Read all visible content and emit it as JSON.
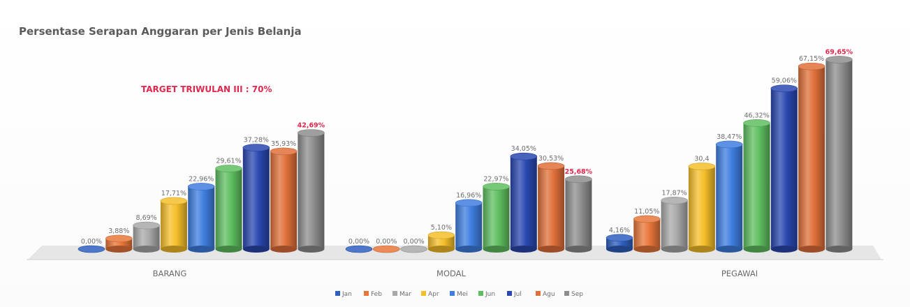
{
  "chart_data": {
    "type": "bar",
    "title": "Persentase Serapan Anggaran per Jenis Belanja",
    "annotation": "TARGET TRIWULAN III : 70%",
    "categories": [
      "BARANG",
      "MODAL",
      "PEGAWAI"
    ],
    "series": [
      {
        "name": "Jan",
        "values": [
          0.0,
          0.0,
          4.16
        ],
        "labels": [
          "0,00%",
          "0,00%",
          "4,16%"
        ],
        "color": "#2f5fbf"
      },
      {
        "name": "Feb",
        "values": [
          3.88,
          0.0,
          11.05
        ],
        "labels": [
          "3,88%",
          "0,00%",
          "11,05%"
        ],
        "color": "#e8763a"
      },
      {
        "name": "Mar",
        "values": [
          8.69,
          0.0,
          17.87
        ],
        "labels": [
          "8,69%",
          "0,00%",
          "17,87%"
        ],
        "color": "#a9a9a9"
      },
      {
        "name": "Apr",
        "values": [
          17.71,
          5.1,
          30.4
        ],
        "labels": [
          "17,71%",
          "5,10%",
          "30,4"
        ],
        "color": "#f5bf2a"
      },
      {
        "name": "Mei",
        "values": [
          22.96,
          16.96,
          38.47
        ],
        "labels": [
          "22,96%",
          "16,96%",
          "38,47%"
        ],
        "color": "#3f7ee0"
      },
      {
        "name": "Jun",
        "values": [
          29.61,
          22.97,
          46.32
        ],
        "labels": [
          "29,61%",
          "22,97%",
          "46,32%"
        ],
        "color": "#5fbf60"
      },
      {
        "name": "Jul",
        "values": [
          37.28,
          34.05,
          59.06
        ],
        "labels": [
          "37,28%",
          "34,05%",
          "59,06%"
        ],
        "color": "#2a48b0"
      },
      {
        "name": "Agu",
        "values": [
          35.93,
          30.53,
          67.15
        ],
        "labels": [
          "35,93%",
          "30,53%",
          "67,15%"
        ],
        "color": "#e0703a"
      },
      {
        "name": "Sep",
        "values": [
          42.69,
          25.68,
          69.65
        ],
        "labels": [
          "42,69%",
          "25,68%",
          "69,65%"
        ],
        "color": "#8e8e8e"
      }
    ],
    "highlight_color": "#e0284e",
    "ylim": [
      0,
      70
    ],
    "grid": false,
    "legend_position": "bottom-center"
  }
}
